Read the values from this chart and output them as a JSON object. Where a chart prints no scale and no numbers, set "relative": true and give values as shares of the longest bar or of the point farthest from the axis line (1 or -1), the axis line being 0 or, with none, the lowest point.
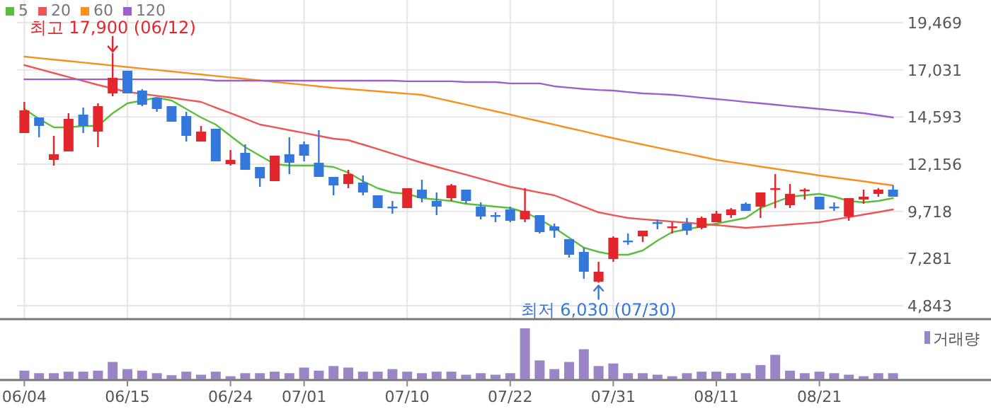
{
  "chart_data": [
    {
      "type": "candlestick",
      "ohlc": [
        [
          13765,
          15374,
          13765,
          14935
        ],
        [
          14569,
          14569,
          13545,
          14131
        ],
        [
          12376,
          13619,
          12083,
          12668
        ],
        [
          12814,
          14789,
          12814,
          14496
        ],
        [
          14716,
          15081,
          13765,
          14131
        ],
        [
          13838,
          15301,
          13033,
          15154
        ],
        [
          15813,
          17900,
          15666,
          16617
        ],
        [
          16983,
          16983,
          15813,
          15813
        ],
        [
          15959,
          16032,
          15154,
          15227
        ],
        [
          15593,
          15593,
          14862,
          15008
        ],
        [
          15154,
          15154,
          14350,
          14350
        ],
        [
          14643,
          14862,
          13326,
          13619
        ],
        [
          13326,
          14131,
          13326,
          13838
        ],
        [
          13984,
          13984,
          12302,
          12302
        ],
        [
          12156,
          12887,
          12083,
          12376
        ],
        [
          12741,
          13180,
          11863,
          11863
        ],
        [
          12010,
          12010,
          10986,
          11425
        ],
        [
          11278,
          12595,
          11278,
          12595
        ],
        [
          12668,
          13545,
          11644,
          12229
        ],
        [
          13180,
          13326,
          12302,
          12595
        ],
        [
          12229,
          13911,
          11498,
          11498
        ],
        [
          11498,
          11498,
          10547,
          11059
        ],
        [
          11132,
          11863,
          10913,
          11644
        ],
        [
          11205,
          11571,
          10547,
          10694
        ],
        [
          10547,
          10547,
          9889,
          9889
        ],
        [
          9962,
          10255,
          9597,
          9889
        ],
        [
          9889,
          10913,
          9889,
          10913
        ],
        [
          10840,
          11352,
          10182,
          10401
        ],
        [
          10255,
          10694,
          9523,
          9962
        ],
        [
          10401,
          11132,
          10255,
          11059
        ],
        [
          10840,
          10840,
          10108,
          10255
        ],
        [
          9962,
          10182,
          9304,
          9450
        ],
        [
          9523,
          9669,
          9158,
          9450
        ],
        [
          9816,
          9962,
          9158,
          9231
        ],
        [
          9304,
          10913,
          9158,
          9742
        ],
        [
          9523,
          9523,
          8573,
          8646
        ],
        [
          8938,
          9085,
          8353,
          8719
        ],
        [
          8280,
          8280,
          7329,
          7476
        ],
        [
          7622,
          7841,
          6232,
          6598
        ],
        [
          6080,
          7110,
          6030,
          6598
        ],
        [
          7256,
          8426,
          7110,
          8353
        ],
        [
          8207,
          8573,
          7988,
          8134
        ],
        [
          8426,
          8719,
          8134,
          8719
        ],
        [
          9158,
          9304,
          8792,
          9085
        ],
        [
          8865,
          9158,
          8573,
          8938
        ],
        [
          9085,
          9377,
          8500,
          8719
        ],
        [
          8865,
          9450,
          8792,
          9377
        ],
        [
          9158,
          9742,
          9158,
          9597
        ],
        [
          9523,
          9889,
          9377,
          9816
        ],
        [
          10108,
          10182,
          9742,
          9742
        ],
        [
          9962,
          10694,
          9377,
          10694
        ],
        [
          10840,
          11644,
          9889,
          10913
        ],
        [
          10035,
          11132,
          9889,
          10620
        ],
        [
          10767,
          10913,
          10328,
          10840
        ],
        [
          10474,
          10474,
          9816,
          9816
        ],
        [
          9962,
          10182,
          9742,
          9889
        ],
        [
          9450,
          10401,
          9231,
          10401
        ],
        [
          10328,
          10840,
          10108,
          10474
        ],
        [
          10620,
          10913,
          10474,
          10840
        ],
        [
          10840,
          11059,
          10474,
          10474
        ]
      ],
      "colors": [
        "#e3262c",
        "#3478dc",
        "#e3262c",
        "#e3262c",
        "#3478dc",
        "#e3262c",
        "#e3262c",
        "#3478dc",
        "#3478dc",
        "#3478dc",
        "#3478dc",
        "#3478dc",
        "#e3262c",
        "#3478dc",
        "#e3262c",
        "#3478dc",
        "#3478dc",
        "#e3262c",
        "#3478dc",
        "#3478dc",
        "#3478dc",
        "#3478dc",
        "#e3262c",
        "#3478dc",
        "#3478dc",
        "#3478dc",
        "#e3262c",
        "#3478dc",
        "#3478dc",
        "#e3262c",
        "#3478dc",
        "#3478dc",
        "#3478dc",
        "#3478dc",
        "#e3262c",
        "#3478dc",
        "#3478dc",
        "#3478dc",
        "#3478dc",
        "#e3262c",
        "#e3262c",
        "#3478dc",
        "#e3262c",
        "#3478dc",
        "#e3262c",
        "#3478dc",
        "#e3262c",
        "#e3262c",
        "#e3262c",
        "#3478dc",
        "#e3262c",
        "#e3262c",
        "#e3262c",
        "#e3262c",
        "#3478dc",
        "#3478dc",
        "#e3262c",
        "#e3262c",
        "#e3262c",
        "#3478dc"
      ],
      "series": [
        {
          "name": "5",
          "type": "line",
          "color": "#5cbf3c",
          "values": [
            15008,
            14496,
            14057,
            14057,
            14131,
            14131,
            14789,
            15301,
            15447,
            15593,
            15447,
            15008,
            14569,
            14204,
            13619,
            13033,
            12595,
            12156,
            12083,
            12083,
            12083,
            12010,
            11717,
            11278,
            10913,
            10694,
            10620,
            10401,
            10328,
            10255,
            10108,
            10035,
            9962,
            9889,
            9669,
            9304,
            8865,
            8353,
            7841,
            7622,
            7476,
            7476,
            7695,
            8207,
            8646,
            8792,
            8938,
            9085,
            9231,
            9377,
            9889,
            10182,
            10474,
            10547,
            10620,
            10474,
            10255,
            10182,
            10255,
            10401
          ]
        },
        {
          "name": "20",
          "type": "line",
          "color": "#ee5555",
          "values": [
            17275,
            17070,
            16865,
            16660,
            16455,
            16251,
            16070,
            15885,
            15790,
            15690,
            15593,
            15480,
            15374,
            15080,
            14790,
            14500,
            14204,
            14060,
            13910,
            13770,
            13620,
            13472,
            13399,
            13170,
            12940,
            12700,
            12460,
            12229,
            12020,
            11810,
            11610,
            11400,
            11190,
            10986,
            10840,
            10690,
            10547,
            10250,
            9960,
            9669,
            9520,
            9377,
            9310,
            9250,
            9190,
            9130,
            9070,
            9011,
            8940,
            8865,
            8920,
            8980,
            9040,
            9100,
            9158,
            9290,
            9420,
            9550,
            9680,
            9816
          ]
        },
        {
          "name": "60",
          "type": "line",
          "color": "#f7901e",
          "values": [
            17714,
            17637,
            17560,
            17484,
            17407,
            17330,
            17253,
            17176,
            17099,
            17022,
            16946,
            16869,
            16792,
            16715,
            16638,
            16561,
            16484,
            16408,
            16331,
            16254,
            16177,
            16100,
            16040,
            15980,
            15920,
            15860,
            15800,
            15740,
            15570,
            15400,
            15230,
            15060,
            14890,
            14720,
            14540,
            14370,
            14200,
            14020,
            13850,
            13670,
            13500,
            13330,
            13170,
            13010,
            12850,
            12700,
            12540,
            12380,
            12260,
            12150,
            12030,
            11920,
            11800,
            11690,
            11570,
            11470,
            11370,
            11270,
            11160,
            11060
          ]
        },
        {
          "name": "120",
          "type": "line",
          "color": "#9d5fcc",
          "values": [
            16540,
            16540,
            16540,
            16540,
            16540,
            16540,
            16540,
            16540,
            16540,
            16540,
            16540,
            16540,
            16540,
            16470,
            16470,
            16470,
            16470,
            16470,
            16470,
            16470,
            16470,
            16470,
            16470,
            16470,
            16470,
            16470,
            16440,
            16440,
            16440,
            16440,
            16400,
            16400,
            16400,
            16330,
            16330,
            16330,
            16180,
            16110,
            16040,
            15990,
            15960,
            15880,
            15810,
            15780,
            15740,
            15670,
            15590,
            15520,
            15450,
            15370,
            15300,
            15230,
            15150,
            15080,
            15010,
            14940,
            14860,
            14790,
            14680,
            14570
          ]
        }
      ],
      "ylim": [
        4185,
        20639
      ],
      "yticks": [
        {
          "value": 4843,
          "label": "4,843"
        },
        {
          "value": 7281,
          "label": "7,281"
        },
        {
          "value": 9718,
          "label": "9,718"
        },
        {
          "value": 12156,
          "label": "12,156"
        },
        {
          "value": 14593,
          "label": "14,593"
        },
        {
          "value": 17031,
          "label": "17,031"
        },
        {
          "value": 19469,
          "label": "19,469"
        }
      ],
      "grid": true,
      "legend": "top left",
      "tick_labels": "y",
      "annotations": [
        "최고 17,900 (06/12)",
        "최저 6,030 (07/30)"
      ]
    },
    {
      "type": "bar",
      "relative": true,
      "categories": [
        "06/04",
        null,
        null,
        null,
        null,
        null,
        null,
        "06/15",
        null,
        null,
        null,
        null,
        null,
        null,
        "06/24",
        null,
        null,
        null,
        null,
        "07/01",
        null,
        null,
        null,
        null,
        null,
        null,
        "07/10",
        null,
        null,
        null,
        null,
        null,
        null,
        "07/22",
        null,
        null,
        null,
        null,
        null,
        null,
        "07/31",
        null,
        null,
        null,
        null,
        null,
        null,
        "08/11",
        null,
        null,
        null,
        null,
        null,
        null,
        "08/21",
        null,
        null,
        null,
        null,
        null
      ],
      "series": [
        {
          "name": "거래량",
          "color": "#9a85c5",
          "values": [
            0.17,
            0.12,
            0.12,
            0.15,
            0.15,
            0.17,
            0.34,
            0.2,
            0.17,
            0.12,
            0.08,
            0.15,
            0.09,
            0.15,
            0.06,
            0.12,
            0.12,
            0.15,
            0.12,
            0.23,
            0.17,
            0.26,
            0.23,
            0.15,
            0.15,
            0.2,
            0.15,
            0.12,
            0.15,
            0.15,
            0.09,
            0.12,
            0.09,
            0.12,
            1,
            0.37,
            0.2,
            0.34,
            0.59,
            0.26,
            0.31,
            0.12,
            0.12,
            0.09,
            0.06,
            0.12,
            0.15,
            0.15,
            0.12,
            0.12,
            0.28,
            0.48,
            0.17,
            0.12,
            0.15,
            0.12,
            0.09,
            0.06,
            0.12,
            0.12
          ]
        }
      ],
      "legend": "top right",
      "tick_labels": "x"
    }
  ]
}
